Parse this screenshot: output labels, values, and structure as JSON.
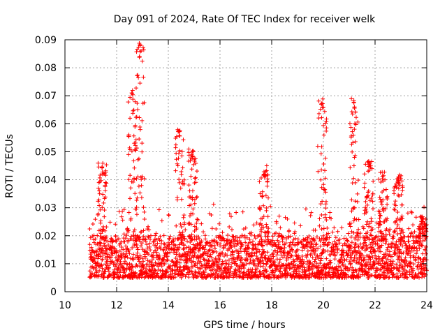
{
  "chart_data": {
    "type": "scatter",
    "title": "Day 091 of 2024, Rate Of TEC Index for receiver welk",
    "xlabel": "GPS time / hours",
    "ylabel": "ROTI / TECUs",
    "xlim": [
      10,
      24
    ],
    "ylim": [
      0,
      0.09
    ],
    "xticks": [
      10,
      12,
      14,
      16,
      18,
      20,
      22,
      24
    ],
    "yticks": [
      0,
      0.01,
      0.02,
      0.03,
      0.04,
      0.05,
      0.06,
      0.07,
      0.08,
      0.09
    ],
    "xtick_labels": [
      "10",
      "12",
      "14",
      "16",
      "18",
      "20",
      "22",
      "24"
    ],
    "ytick_labels": [
      "0",
      "0.01",
      "0.02",
      "0.03",
      "0.04",
      "0.05",
      "0.06",
      "0.07",
      "0.08",
      "0.09"
    ],
    "grid": true,
    "marker": "+",
    "color": "#ff0000",
    "series": [
      {
        "name": "ROTI",
        "x_range": [
          10.95,
          24.0
        ],
        "baseline_band": [
          0.005,
          0.02
        ],
        "burst_peaks": [
          {
            "x": 11.45,
            "y": 0.046
          },
          {
            "x": 12.6,
            "y": 0.072
          },
          {
            "x": 12.9,
            "y": 0.089
          },
          {
            "x": 14.45,
            "y": 0.058
          },
          {
            "x": 14.95,
            "y": 0.051
          },
          {
            "x": 17.7,
            "y": 0.045
          },
          {
            "x": 19.95,
            "y": 0.069
          },
          {
            "x": 21.2,
            "y": 0.069
          },
          {
            "x": 21.75,
            "y": 0.048
          },
          {
            "x": 22.3,
            "y": 0.043
          },
          {
            "x": 22.9,
            "y": 0.042
          },
          {
            "x": 23.85,
            "y": 0.027
          }
        ]
      }
    ]
  }
}
